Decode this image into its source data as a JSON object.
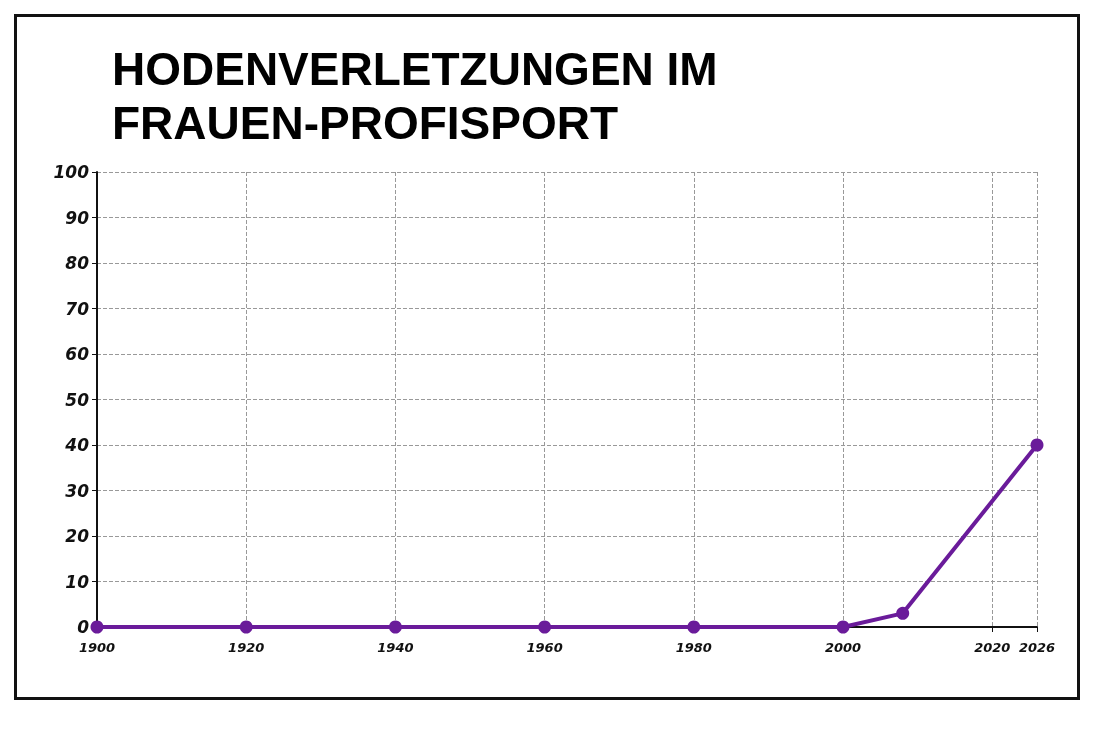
{
  "chart_data": {
    "type": "line",
    "title": "HODENVERLETZUNGEN IM\nFRAUEN-PROFISPORT",
    "x": [
      1900,
      1920,
      1940,
      1960,
      1980,
      2000,
      2008,
      2026
    ],
    "series": [
      {
        "color": "#6a1b9a",
        "values": [
          0,
          0,
          0,
          0,
          0,
          0,
          3,
          40
        ]
      }
    ],
    "xlim": [
      1900,
      2026
    ],
    "xticks": [
      1900,
      1920,
      1940,
      1960,
      1980,
      2000,
      2020,
      2026
    ],
    "ylim": [
      0,
      100
    ],
    "yticks": [
      0,
      10,
      20,
      30,
      40,
      50,
      60,
      70,
      80,
      90,
      100
    ],
    "grid": true,
    "marker": "circle",
    "line_style": "solid"
  }
}
